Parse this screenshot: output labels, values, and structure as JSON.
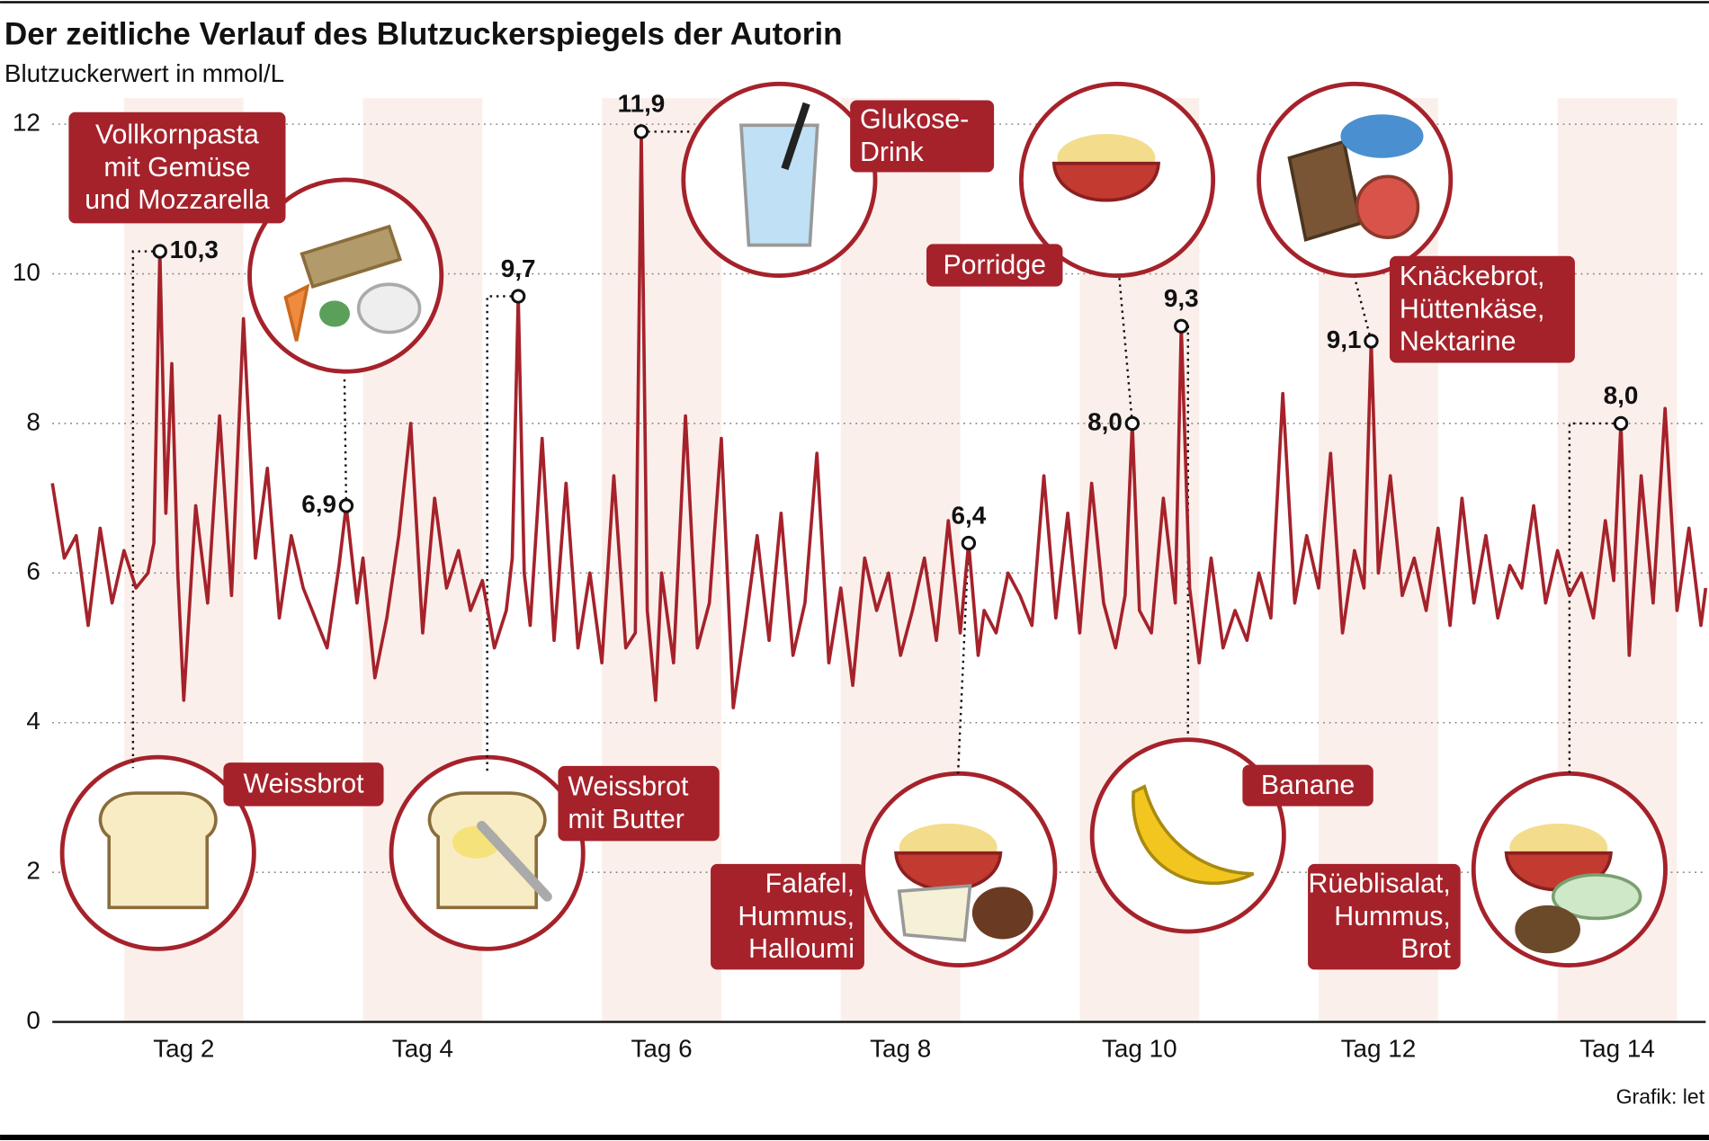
{
  "chart_data": {
    "type": "line",
    "title": "Der zeitliche Verlauf des Blutzuckerspiegels der Autorin",
    "subtitle": "Blutzuckerwert in mmol/L",
    "source": "Grafik: let",
    "color": "#a5222b",
    "xlim": [
      0.9,
      14.74
    ],
    "ylim": [
      0,
      12
    ],
    "yticks": [
      0,
      2,
      4,
      6,
      8,
      10,
      12
    ],
    "xticks": [
      {
        "value": 2,
        "label": "Tag 2"
      },
      {
        "value": 4,
        "label": "Tag 4"
      },
      {
        "value": 6,
        "label": "Tag 6"
      },
      {
        "value": 8,
        "label": "Tag 8"
      },
      {
        "value": 10,
        "label": "Tag 10"
      },
      {
        "value": 12,
        "label": "Tag 12"
      },
      {
        "value": 14,
        "label": "Tag 14"
      }
    ],
    "grid": true,
    "x": [
      0.9,
      1.0,
      1.1,
      1.2,
      1.3,
      1.4,
      1.5,
      1.6,
      1.7,
      1.75,
      1.8,
      1.85,
      1.9,
      1.95,
      2.0,
      2.1,
      2.2,
      2.3,
      2.4,
      2.5,
      2.6,
      2.7,
      2.8,
      2.9,
      3.0,
      3.1,
      3.2,
      3.3,
      3.36,
      3.45,
      3.5,
      3.6,
      3.7,
      3.8,
      3.9,
      4.0,
      4.1,
      4.2,
      4.3,
      4.4,
      4.5,
      4.6,
      4.7,
      4.75,
      4.8,
      4.85,
      4.9,
      5.0,
      5.1,
      5.2,
      5.3,
      5.4,
      5.5,
      5.6,
      5.7,
      5.78,
      5.83,
      5.88,
      5.95,
      6.0,
      6.1,
      6.2,
      6.3,
      6.4,
      6.5,
      6.6,
      6.7,
      6.8,
      6.9,
      7.0,
      7.1,
      7.2,
      7.3,
      7.4,
      7.5,
      7.6,
      7.7,
      7.8,
      7.9,
      8.0,
      8.1,
      8.2,
      8.3,
      8.4,
      8.5,
      8.57,
      8.65,
      8.7,
      8.8,
      8.9,
      9.0,
      9.1,
      9.2,
      9.3,
      9.4,
      9.5,
      9.6,
      9.7,
      9.8,
      9.88,
      9.94,
      10.0,
      10.1,
      10.2,
      10.3,
      10.35,
      10.42,
      10.5,
      10.6,
      10.7,
      10.8,
      10.9,
      11.0,
      11.1,
      11.2,
      11.3,
      11.4,
      11.5,
      11.6,
      11.7,
      11.8,
      11.88,
      11.94,
      12.0,
      12.1,
      12.2,
      12.3,
      12.4,
      12.5,
      12.6,
      12.7,
      12.8,
      12.9,
      13.0,
      13.1,
      13.2,
      13.3,
      13.4,
      13.5,
      13.6,
      13.7,
      13.8,
      13.9,
      13.97,
      14.03,
      14.1,
      14.2,
      14.3,
      14.4,
      14.5,
      14.6,
      14.7,
      14.74
    ],
    "values": [
      7.2,
      6.2,
      6.5,
      5.3,
      6.6,
      5.6,
      6.3,
      5.8,
      6.0,
      6.4,
      10.3,
      6.8,
      8.8,
      6.0,
      4.3,
      6.9,
      5.6,
      8.1,
      5.7,
      9.4,
      6.2,
      7.4,
      5.4,
      6.5,
      5.8,
      5.4,
      5.0,
      6.1,
      6.9,
      5.6,
      6.2,
      4.6,
      5.4,
      6.5,
      8.0,
      5.2,
      7.0,
      5.8,
      6.3,
      5.5,
      5.9,
      5.0,
      5.5,
      6.2,
      9.7,
      6.0,
      5.3,
      7.8,
      5.1,
      7.2,
      5.0,
      6.0,
      4.8,
      7.3,
      5.0,
      5.2,
      11.9,
      5.5,
      4.3,
      6.0,
      4.8,
      8.1,
      5.0,
      5.6,
      7.8,
      4.2,
      5.3,
      6.5,
      5.1,
      6.8,
      4.9,
      5.6,
      7.6,
      4.8,
      5.8,
      4.5,
      6.2,
      5.5,
      6.0,
      4.9,
      5.5,
      6.2,
      5.1,
      6.7,
      5.2,
      6.4,
      4.9,
      5.5,
      5.2,
      6.0,
      5.7,
      5.3,
      7.3,
      5.4,
      6.8,
      5.2,
      7.2,
      5.6,
      5.0,
      5.7,
      8.0,
      5.5,
      5.2,
      7.0,
      5.6,
      9.3,
      5.8,
      4.8,
      6.2,
      5.0,
      5.5,
      5.1,
      6.0,
      5.4,
      8.4,
      5.6,
      6.5,
      5.8,
      7.6,
      5.2,
      6.3,
      5.8,
      9.1,
      6.0,
      7.3,
      5.7,
      6.2,
      5.5,
      6.6,
      5.3,
      7.0,
      5.6,
      6.5,
      5.4,
      6.1,
      5.8,
      6.9,
      5.6,
      6.3,
      5.7,
      6.0,
      5.4,
      6.7,
      5.9,
      8.0,
      4.9,
      7.3,
      5.6,
      8.2,
      5.5,
      6.6,
      5.3,
      5.8
    ],
    "annotations": [
      {
        "x": 1.8,
        "y": 10.3,
        "value_label": "10,3",
        "lines": [
          "Weissbrot"
        ]
      },
      {
        "x": 3.36,
        "y": 6.9,
        "value_label": "6,9",
        "lines": [
          "Vollkornpasta",
          "mit Gemüse",
          "und Mozzarella"
        ]
      },
      {
        "x": 4.8,
        "y": 9.7,
        "value_label": "9,7",
        "lines": [
          "Weissbrot",
          "mit Butter"
        ]
      },
      {
        "x": 5.83,
        "y": 11.9,
        "value_label": "11,9",
        "lines": [
          "Glukose-",
          "Drink"
        ]
      },
      {
        "x": 8.57,
        "y": 6.4,
        "value_label": "6,4",
        "lines": [
          "Falafel,",
          "Hummus,",
          "Halloumi"
        ]
      },
      {
        "x": 9.94,
        "y": 8.0,
        "value_label": "8,0",
        "lines": [
          "Porridge"
        ]
      },
      {
        "x": 10.35,
        "y": 9.3,
        "value_label": "9,3",
        "lines": [
          "Banane"
        ]
      },
      {
        "x": 11.94,
        "y": 9.1,
        "value_label": "9,1",
        "lines": [
          "Knäckebrot,",
          "Hüttenkäse,",
          "Nektarine"
        ]
      },
      {
        "x": 14.03,
        "y": 8.0,
        "value_label": "8,0",
        "lines": [
          "Rüeblisalat,",
          "Hummus,",
          "Brot"
        ]
      }
    ]
  }
}
